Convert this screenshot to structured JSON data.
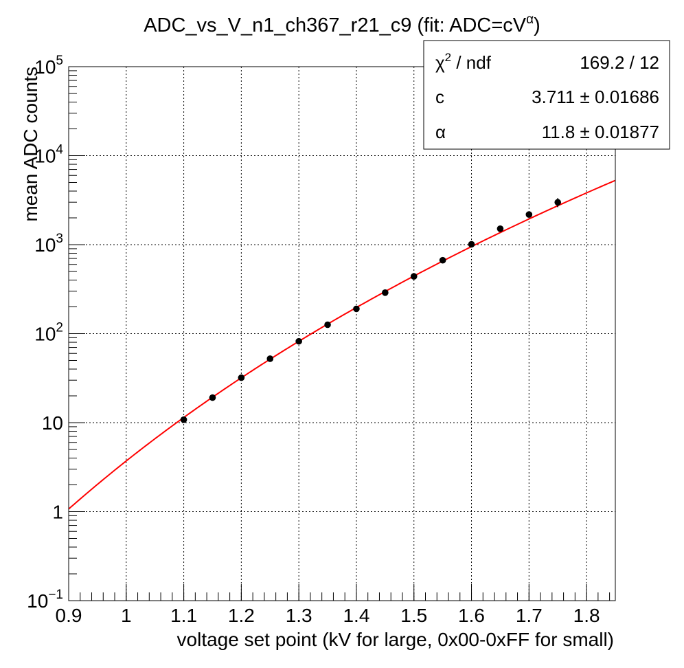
{
  "chart_data": {
    "type": "scatter",
    "title_main": "ADC_vs_V_n1_ch367_r21_c9 (fit: ADC=cV",
    "title_sup": "α",
    "title_end": ")",
    "xlabel": "voltage set point (kV for large, 0x00-0xFF for small)",
    "ylabel": "mean ADC counts",
    "xlim": [
      0.9,
      1.85
    ],
    "ylim": [
      0.1,
      100000
    ],
    "y_scale": "log",
    "grid": true,
    "x_ticks": [
      {
        "v": 0.9,
        "label": "0.9"
      },
      {
        "v": 1.0,
        "label": "1"
      },
      {
        "v": 1.1,
        "label": "1.1"
      },
      {
        "v": 1.2,
        "label": "1.2"
      },
      {
        "v": 1.3,
        "label": "1.3"
      },
      {
        "v": 1.4,
        "label": "1.4"
      },
      {
        "v": 1.5,
        "label": "1.5"
      },
      {
        "v": 1.6,
        "label": "1.6"
      },
      {
        "v": 1.7,
        "label": "1.7"
      },
      {
        "v": 1.8,
        "label": "1.8"
      }
    ],
    "y_ticks": [
      {
        "v": 0.1,
        "base": "10",
        "exp": "−1"
      },
      {
        "v": 1,
        "base": "1",
        "exp": ""
      },
      {
        "v": 10,
        "base": "10",
        "exp": ""
      },
      {
        "v": 100,
        "base": "10",
        "exp": "2"
      },
      {
        "v": 1000,
        "base": "10",
        "exp": "3"
      },
      {
        "v": 10000,
        "base": "10",
        "exp": "4"
      },
      {
        "v": 100000,
        "base": "10",
        "exp": "5"
      }
    ],
    "series": [
      {
        "x": [
          1.1,
          1.15,
          1.2,
          1.25,
          1.3,
          1.35,
          1.4,
          1.45,
          1.5,
          1.55,
          1.6,
          1.65,
          1.7,
          1.75
        ],
        "y": [
          10.8,
          19.1,
          32.0,
          52.3,
          82.0,
          126,
          190,
          289,
          440,
          668,
          1010,
          1510,
          2180,
          2990
        ],
        "err": [
          0.6,
          0.9,
          1.5,
          2.5,
          4,
          6,
          9,
          14,
          20,
          30,
          45,
          70,
          100,
          350
        ]
      }
    ],
    "fit": {
      "formula": "ADC=cV^alpha",
      "c": 3.711,
      "alpha": 11.8,
      "color": "#ff0000",
      "x_range": [
        0.9,
        1.85
      ]
    },
    "stats": {
      "rows": [
        {
          "label_base": "χ",
          "label_sup": "2",
          "label_rest": " / ndf",
          "value": "169.2 / 12"
        },
        {
          "label_base": "c",
          "label_sup": "",
          "label_rest": "",
          "value": "3.711 ± 0.01686"
        },
        {
          "label_base": "α",
          "label_sup": "",
          "label_rest": "",
          "value": "11.8 ± 0.01877"
        }
      ]
    },
    "legend": "top-right"
  }
}
